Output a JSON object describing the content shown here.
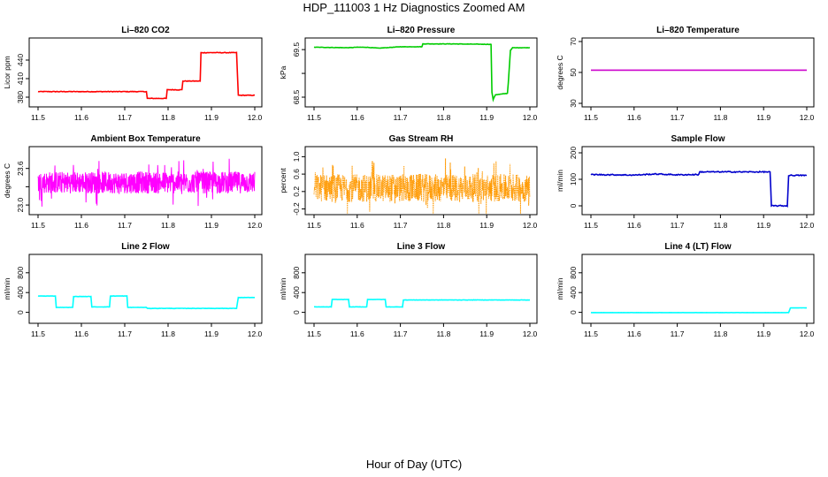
{
  "page": {
    "title": "HDP_111003  1 Hz Diagnostics Zoomed AM",
    "x_axis_label": "Hour of Day (UTC)"
  },
  "chart_data": [
    {
      "id": "co2",
      "type": "line",
      "title": "Li–820 CO2",
      "ylabel": "Licor ppm",
      "color": "#ff0000",
      "noise": 0.5,
      "xlim": [
        11.5,
        12.0
      ],
      "ylim": [
        370,
        470
      ],
      "yticks": [
        380,
        410,
        440
      ],
      "xticks": [
        "11.5",
        "11.6",
        "11.7",
        "11.8",
        "11.9",
        "12.0"
      ],
      "series": [
        {
          "x": [
            11.5,
            11.75,
            11.752,
            11.796,
            11.798,
            11.832,
            11.834,
            11.874,
            11.876,
            11.958,
            11.962,
            12.0
          ],
          "y": [
            389,
            389,
            378,
            378,
            392,
            392,
            406,
            406,
            452,
            452,
            383,
            383
          ]
        }
      ]
    },
    {
      "id": "pressure",
      "type": "line",
      "title": "Li–820 Pressure",
      "ylabel": "kPa",
      "color": "#00cc00",
      "noise": 0.004,
      "xlim": [
        11.5,
        12.0
      ],
      "ylim": [
        68.37,
        69.67
      ],
      "yticks": [
        68.5,
        69.0,
        69.5
      ],
      "yticklabels": [
        "68.5",
        "",
        "69.5"
      ],
      "xticks": [
        "11.5",
        "11.6",
        "11.7",
        "11.8",
        "11.9",
        "12.0"
      ],
      "series": [
        {
          "x": [
            11.5,
            11.58,
            11.6,
            11.62,
            11.65,
            11.7,
            11.75,
            11.752,
            11.82,
            11.91,
            11.912,
            11.915,
            11.92,
            11.93,
            11.948,
            11.95,
            11.955,
            11.96,
            12.0
          ],
          "y": [
            69.55,
            69.54,
            69.55,
            69.55,
            69.53,
            69.56,
            69.56,
            69.62,
            69.62,
            69.61,
            68.6,
            68.45,
            68.55,
            68.56,
            68.58,
            68.8,
            69.48,
            69.54,
            69.54
          ]
        }
      ]
    },
    {
      "id": "temp",
      "type": "line",
      "title": "Li–820 Temperature",
      "ylabel": "degrees C",
      "color": "#cc00cc",
      "noise": 0,
      "xlim": [
        11.5,
        12.0
      ],
      "ylim": [
        30,
        70
      ],
      "yticks": [
        30,
        50,
        70
      ],
      "xticks": [
        "11.5",
        "11.6",
        "11.7",
        "11.8",
        "11.9",
        "12.0"
      ],
      "series": [
        {
          "x": [
            11.5,
            12.0
          ],
          "y": [
            51.5,
            51.5
          ]
        }
      ]
    },
    {
      "id": "boxtemp",
      "type": "line",
      "title": "Ambient Box Temperature",
      "ylabel": "degrees C",
      "color": "#ff00ff",
      "noise": 0.18,
      "dense": true,
      "xlim": [
        11.5,
        12.0
      ],
      "ylim": [
        22.9,
        23.9
      ],
      "yticks": [
        23.0,
        23.3,
        23.6
      ],
      "yticklabels": [
        "23.0",
        "",
        "23.6"
      ],
      "xticks": [
        "11.5",
        "11.6",
        "11.7",
        "11.8",
        "11.9",
        "12.0"
      ],
      "series": [
        {
          "x": [
            11.5,
            12.0
          ],
          "y": [
            23.37,
            23.37
          ]
        }
      ]
    },
    {
      "id": "rh",
      "type": "line",
      "title": "Gas Stream RH",
      "ylabel": "percent",
      "color": "#ff9900",
      "noise": 0.32,
      "dense": true,
      "dotted": true,
      "xlim": [
        11.5,
        12.0
      ],
      "ylim": [
        -0.25,
        1.15
      ],
      "yticks": [
        -0.2,
        0.2,
        0.6,
        1.0
      ],
      "yticklabels": [
        "-0.2",
        "0.2",
        "0.6",
        "1.0"
      ],
      "xticks": [
        "11.5",
        "11.6",
        "11.7",
        "11.8",
        "11.9",
        "12.0"
      ],
      "series": [
        {
          "x": [
            11.5,
            12.0
          ],
          "y": [
            0.28,
            0.28
          ]
        }
      ]
    },
    {
      "id": "sflow",
      "type": "line",
      "title": "Sample Flow",
      "ylabel": "ml/min",
      "color": "#0000cc",
      "noise": 2,
      "xlim": [
        11.5,
        12.0
      ],
      "ylim": [
        -20,
        210
      ],
      "yticks": [
        0,
        100,
        200
      ],
      "xticks": [
        "11.5",
        "11.6",
        "11.7",
        "11.8",
        "11.9",
        "12.0"
      ],
      "series": [
        {
          "x": [
            11.5,
            11.6,
            11.65,
            11.7,
            11.75,
            11.752,
            11.915,
            11.918,
            11.955,
            11.958,
            12.0
          ],
          "y": [
            118,
            116,
            120,
            117,
            118,
            128,
            128,
            0,
            0,
            115,
            115
          ]
        }
      ]
    },
    {
      "id": "line2",
      "type": "line",
      "title": "Line 2 Flow",
      "ylabel": "ml/min",
      "color": "#00ffff",
      "noise": 3,
      "xlim": [
        11.5,
        12.0
      ],
      "ylim": [
        -150,
        1100
      ],
      "yticks": [
        0,
        400,
        800
      ],
      "xticks": [
        "11.5",
        "11.6",
        "11.7",
        "11.8",
        "11.9",
        "12.0"
      ],
      "series": [
        {
          "x": [
            11.5,
            11.54,
            11.542,
            11.58,
            11.582,
            11.622,
            11.624,
            11.665,
            11.667,
            11.705,
            11.707,
            11.75,
            11.752,
            11.958,
            11.962,
            12.0
          ],
          "y": [
            330,
            330,
            100,
            100,
            320,
            320,
            110,
            110,
            330,
            330,
            100,
            100,
            80,
            80,
            300,
            300
          ]
        }
      ]
    },
    {
      "id": "line3",
      "type": "line",
      "title": "Line 3 Flow",
      "ylabel": "ml/min",
      "color": "#00ffff",
      "noise": 3,
      "xlim": [
        11.5,
        12.0
      ],
      "ylim": [
        -150,
        1100
      ],
      "yticks": [
        0,
        400,
        800
      ],
      "xticks": [
        "11.5",
        "11.6",
        "11.7",
        "11.8",
        "11.9",
        "12.0"
      ],
      "series": [
        {
          "x": [
            11.5,
            11.54,
            11.542,
            11.58,
            11.582,
            11.622,
            11.624,
            11.665,
            11.667,
            11.705,
            11.707,
            11.958,
            11.962,
            12.0
          ],
          "y": [
            110,
            110,
            260,
            260,
            110,
            110,
            260,
            260,
            110,
            110,
            250,
            250,
            250,
            250
          ]
        }
      ]
    },
    {
      "id": "line4",
      "type": "line",
      "title": "Line 4 (LT) Flow",
      "ylabel": "ml/min",
      "color": "#00ffff",
      "noise": 1,
      "xlim": [
        11.5,
        12.0
      ],
      "ylim": [
        -150,
        1100
      ],
      "yticks": [
        0,
        400,
        800
      ],
      "xticks": [
        "11.5",
        "11.6",
        "11.7",
        "11.8",
        "11.9",
        "12.0"
      ],
      "series": [
        {
          "x": [
            11.5,
            11.958,
            11.962,
            12.0
          ],
          "y": [
            -5,
            -5,
            90,
            90
          ]
        }
      ]
    }
  ]
}
